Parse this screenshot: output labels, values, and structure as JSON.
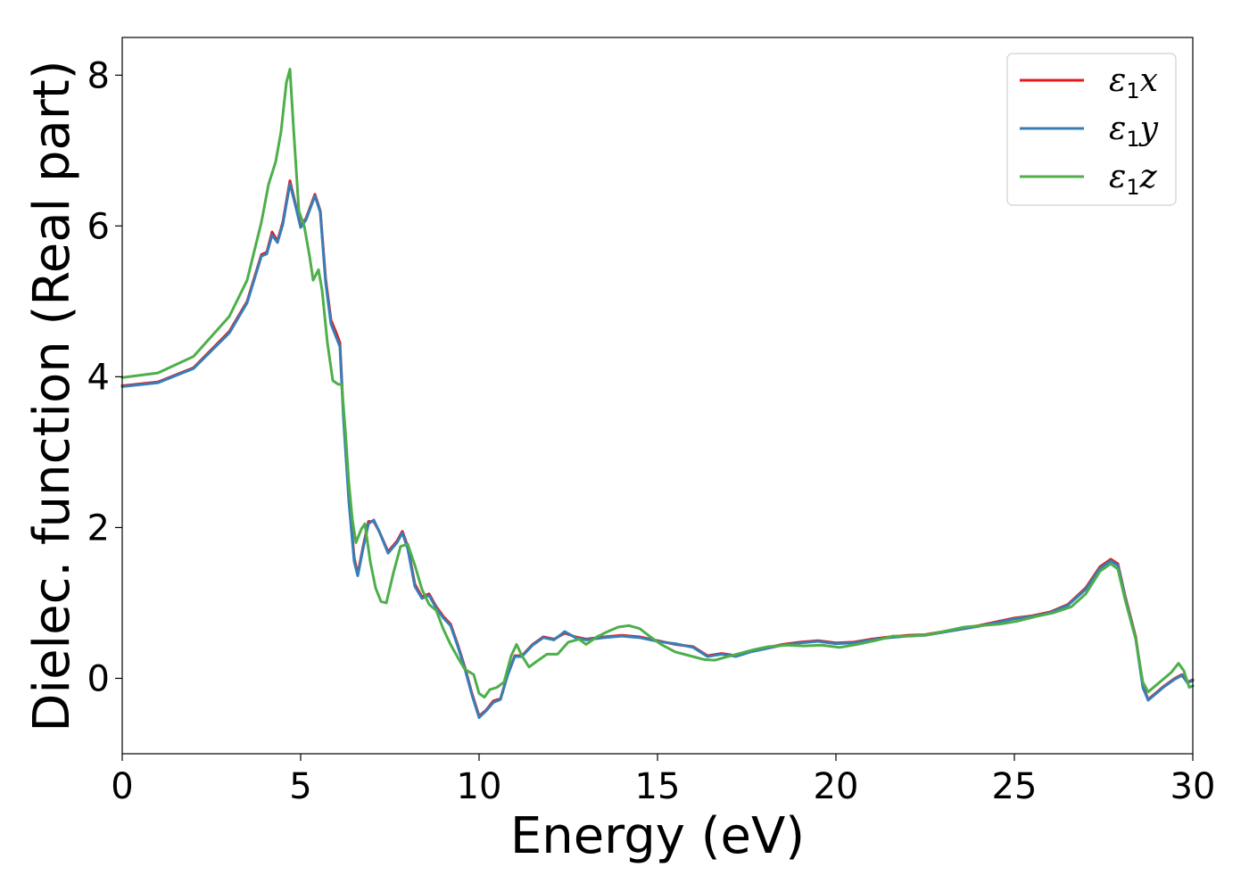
{
  "chart_data": {
    "type": "line",
    "xlabel": "Energy (eV)",
    "ylabel": "Dielec. function (Real part)",
    "xlim": [
      0,
      30
    ],
    "ylim": [
      -1,
      8.5
    ],
    "xticks": [
      0,
      5,
      10,
      15,
      20,
      25,
      30
    ],
    "yticks": [
      0,
      2,
      4,
      6,
      8
    ],
    "xtick_labels": [
      "0",
      "5",
      "10",
      "15",
      "20",
      "25",
      "30"
    ],
    "ytick_labels": [
      "0",
      "2",
      "4",
      "6",
      "8"
    ],
    "grid": false,
    "legend_position": "top-right",
    "series": [
      {
        "name": "ε1x",
        "legend": {
          "base": "ε",
          "sub": "1",
          "var": "x"
        },
        "color": "#e41a1c",
        "points": [
          [
            0,
            3.88
          ],
          [
            1,
            3.93
          ],
          [
            2,
            4.12
          ],
          [
            3,
            4.6
          ],
          [
            3.5,
            5.0
          ],
          [
            3.9,
            5.62
          ],
          [
            4.05,
            5.65
          ],
          [
            4.2,
            5.92
          ],
          [
            4.35,
            5.8
          ],
          [
            4.5,
            6.05
          ],
          [
            4.7,
            6.6
          ],
          [
            4.85,
            6.3
          ],
          [
            5.0,
            6.0
          ],
          [
            5.15,
            6.1
          ],
          [
            5.4,
            6.42
          ],
          [
            5.55,
            6.2
          ],
          [
            5.7,
            5.3
          ],
          [
            5.85,
            4.75
          ],
          [
            6.0,
            4.58
          ],
          [
            6.1,
            4.45
          ],
          [
            6.2,
            3.5
          ],
          [
            6.35,
            2.4
          ],
          [
            6.5,
            1.6
          ],
          [
            6.6,
            1.38
          ],
          [
            6.75,
            1.75
          ],
          [
            6.9,
            2.08
          ],
          [
            7.05,
            2.08
          ],
          [
            7.2,
            1.95
          ],
          [
            7.45,
            1.68
          ],
          [
            7.7,
            1.82
          ],
          [
            7.85,
            1.95
          ],
          [
            8.0,
            1.75
          ],
          [
            8.2,
            1.25
          ],
          [
            8.4,
            1.08
          ],
          [
            8.6,
            1.12
          ],
          [
            8.8,
            0.95
          ],
          [
            9.0,
            0.82
          ],
          [
            9.2,
            0.72
          ],
          [
            9.4,
            0.45
          ],
          [
            9.6,
            0.15
          ],
          [
            9.8,
            -0.2
          ],
          [
            10.0,
            -0.5
          ],
          [
            10.2,
            -0.42
          ],
          [
            10.4,
            -0.3
          ],
          [
            10.6,
            -0.27
          ],
          [
            10.8,
            0.05
          ],
          [
            11.0,
            0.3
          ],
          [
            11.2,
            0.3
          ],
          [
            11.5,
            0.45
          ],
          [
            11.8,
            0.55
          ],
          [
            12.1,
            0.52
          ],
          [
            12.4,
            0.6
          ],
          [
            12.7,
            0.55
          ],
          [
            13.0,
            0.52
          ],
          [
            13.5,
            0.55
          ],
          [
            14.0,
            0.57
          ],
          [
            14.5,
            0.55
          ],
          [
            15.0,
            0.5
          ],
          [
            15.5,
            0.45
          ],
          [
            16.0,
            0.42
          ],
          [
            16.4,
            0.3
          ],
          [
            16.8,
            0.33
          ],
          [
            17.2,
            0.3
          ],
          [
            17.6,
            0.36
          ],
          [
            18.0,
            0.4
          ],
          [
            18.5,
            0.45
          ],
          [
            19.0,
            0.48
          ],
          [
            19.5,
            0.5
          ],
          [
            20.0,
            0.47
          ],
          [
            20.5,
            0.48
          ],
          [
            21.0,
            0.52
          ],
          [
            21.5,
            0.55
          ],
          [
            22.0,
            0.57
          ],
          [
            22.5,
            0.58
          ],
          [
            23.0,
            0.62
          ],
          [
            23.5,
            0.66
          ],
          [
            24.0,
            0.7
          ],
          [
            24.5,
            0.75
          ],
          [
            25.0,
            0.8
          ],
          [
            25.5,
            0.83
          ],
          [
            26.0,
            0.88
          ],
          [
            26.5,
            0.98
          ],
          [
            27.0,
            1.2
          ],
          [
            27.4,
            1.48
          ],
          [
            27.7,
            1.58
          ],
          [
            27.9,
            1.52
          ],
          [
            28.1,
            1.1
          ],
          [
            28.4,
            0.55
          ],
          [
            28.6,
            -0.1
          ],
          [
            28.75,
            -0.28
          ],
          [
            28.95,
            -0.2
          ],
          [
            29.2,
            -0.1
          ],
          [
            29.5,
            0.0
          ],
          [
            29.7,
            0.05
          ],
          [
            29.85,
            -0.05
          ],
          [
            30.0,
            -0.02
          ]
        ]
      },
      {
        "name": "ε1y",
        "legend": {
          "base": "ε",
          "sub": "1",
          "var": "y"
        },
        "color": "#377eb8",
        "points": [
          [
            0,
            3.87
          ],
          [
            1,
            3.92
          ],
          [
            2,
            4.11
          ],
          [
            3,
            4.58
          ],
          [
            3.5,
            4.98
          ],
          [
            3.9,
            5.6
          ],
          [
            4.05,
            5.63
          ],
          [
            4.2,
            5.88
          ],
          [
            4.35,
            5.78
          ],
          [
            4.5,
            6.02
          ],
          [
            4.7,
            6.56
          ],
          [
            4.85,
            6.28
          ],
          [
            5.0,
            5.98
          ],
          [
            5.15,
            6.08
          ],
          [
            5.4,
            6.4
          ],
          [
            5.55,
            6.18
          ],
          [
            5.7,
            5.25
          ],
          [
            5.85,
            4.7
          ],
          [
            6.0,
            4.52
          ],
          [
            6.1,
            4.4
          ],
          [
            6.2,
            3.45
          ],
          [
            6.35,
            2.35
          ],
          [
            6.5,
            1.55
          ],
          [
            6.6,
            1.36
          ],
          [
            6.75,
            1.72
          ],
          [
            6.9,
            2.05
          ],
          [
            7.05,
            2.1
          ],
          [
            7.2,
            1.95
          ],
          [
            7.45,
            1.66
          ],
          [
            7.7,
            1.8
          ],
          [
            7.85,
            1.93
          ],
          [
            8.0,
            1.72
          ],
          [
            8.2,
            1.22
          ],
          [
            8.4,
            1.06
          ],
          [
            8.6,
            1.1
          ],
          [
            8.8,
            0.93
          ],
          [
            9.0,
            0.8
          ],
          [
            9.2,
            0.7
          ],
          [
            9.4,
            0.43
          ],
          [
            9.6,
            0.13
          ],
          [
            9.8,
            -0.22
          ],
          [
            10.0,
            -0.52
          ],
          [
            10.2,
            -0.43
          ],
          [
            10.4,
            -0.32
          ],
          [
            10.6,
            -0.28
          ],
          [
            10.8,
            0.04
          ],
          [
            11.0,
            0.29
          ],
          [
            11.2,
            0.29
          ],
          [
            11.5,
            0.44
          ],
          [
            11.8,
            0.54
          ],
          [
            12.1,
            0.51
          ],
          [
            12.4,
            0.62
          ],
          [
            12.7,
            0.54
          ],
          [
            13.0,
            0.51
          ],
          [
            13.5,
            0.54
          ],
          [
            14.0,
            0.56
          ],
          [
            14.5,
            0.54
          ],
          [
            15.0,
            0.49
          ],
          [
            15.5,
            0.46
          ],
          [
            16.0,
            0.41
          ],
          [
            16.4,
            0.29
          ],
          [
            16.8,
            0.32
          ],
          [
            17.2,
            0.29
          ],
          [
            17.6,
            0.35
          ],
          [
            18.0,
            0.39
          ],
          [
            18.5,
            0.44
          ],
          [
            19.0,
            0.47
          ],
          [
            19.5,
            0.49
          ],
          [
            20.0,
            0.46
          ],
          [
            20.5,
            0.47
          ],
          [
            21.0,
            0.51
          ],
          [
            21.5,
            0.54
          ],
          [
            22.0,
            0.56
          ],
          [
            22.5,
            0.57
          ],
          [
            23.0,
            0.61
          ],
          [
            23.5,
            0.65
          ],
          [
            24.0,
            0.69
          ],
          [
            24.5,
            0.74
          ],
          [
            25.0,
            0.79
          ],
          [
            25.5,
            0.82
          ],
          [
            26.0,
            0.87
          ],
          [
            26.5,
            0.97
          ],
          [
            27.0,
            1.18
          ],
          [
            27.4,
            1.46
          ],
          [
            27.7,
            1.56
          ],
          [
            27.9,
            1.5
          ],
          [
            28.1,
            1.08
          ],
          [
            28.4,
            0.53
          ],
          [
            28.6,
            -0.12
          ],
          [
            28.75,
            -0.29
          ],
          [
            28.95,
            -0.21
          ],
          [
            29.2,
            -0.11
          ],
          [
            29.5,
            -0.01
          ],
          [
            29.7,
            0.04
          ],
          [
            29.85,
            -0.06
          ],
          [
            30.0,
            -0.03
          ]
        ]
      },
      {
        "name": "ε1z",
        "legend": {
          "base": "ε",
          "sub": "1",
          "var": "z"
        },
        "color": "#4daf4a",
        "points": [
          [
            0,
            3.99
          ],
          [
            1,
            4.05
          ],
          [
            2,
            4.27
          ],
          [
            3,
            4.8
          ],
          [
            3.5,
            5.28
          ],
          [
            3.9,
            6.05
          ],
          [
            4.1,
            6.55
          ],
          [
            4.3,
            6.85
          ],
          [
            4.45,
            7.25
          ],
          [
            4.6,
            7.9
          ],
          [
            4.7,
            8.08
          ],
          [
            4.8,
            7.3
          ],
          [
            4.95,
            6.2
          ],
          [
            5.1,
            6.0
          ],
          [
            5.25,
            5.6
          ],
          [
            5.35,
            5.28
          ],
          [
            5.5,
            5.42
          ],
          [
            5.6,
            5.15
          ],
          [
            5.75,
            4.45
          ],
          [
            5.9,
            3.95
          ],
          [
            6.05,
            3.9
          ],
          [
            6.15,
            3.9
          ],
          [
            6.25,
            3.3
          ],
          [
            6.35,
            2.6
          ],
          [
            6.45,
            2.1
          ],
          [
            6.55,
            1.8
          ],
          [
            6.7,
            1.98
          ],
          [
            6.8,
            2.05
          ],
          [
            6.95,
            1.55
          ],
          [
            7.1,
            1.2
          ],
          [
            7.25,
            1.02
          ],
          [
            7.4,
            1.0
          ],
          [
            7.6,
            1.4
          ],
          [
            7.8,
            1.75
          ],
          [
            8.0,
            1.78
          ],
          [
            8.2,
            1.5
          ],
          [
            8.4,
            1.18
          ],
          [
            8.6,
            0.98
          ],
          [
            8.8,
            0.9
          ],
          [
            9.0,
            0.65
          ],
          [
            9.2,
            0.45
          ],
          [
            9.4,
            0.28
          ],
          [
            9.6,
            0.12
          ],
          [
            9.85,
            0.05
          ],
          [
            10.0,
            -0.2
          ],
          [
            10.15,
            -0.25
          ],
          [
            10.3,
            -0.15
          ],
          [
            10.5,
            -0.12
          ],
          [
            10.7,
            -0.05
          ],
          [
            10.9,
            0.3
          ],
          [
            11.05,
            0.45
          ],
          [
            11.2,
            0.3
          ],
          [
            11.4,
            0.15
          ],
          [
            11.6,
            0.22
          ],
          [
            11.9,
            0.32
          ],
          [
            12.2,
            0.32
          ],
          [
            12.5,
            0.48
          ],
          [
            12.8,
            0.52
          ],
          [
            13.0,
            0.45
          ],
          [
            13.3,
            0.55
          ],
          [
            13.6,
            0.62
          ],
          [
            13.9,
            0.68
          ],
          [
            14.2,
            0.7
          ],
          [
            14.5,
            0.66
          ],
          [
            14.8,
            0.55
          ],
          [
            15.1,
            0.45
          ],
          [
            15.5,
            0.35
          ],
          [
            15.9,
            0.3
          ],
          [
            16.3,
            0.25
          ],
          [
            16.6,
            0.24
          ],
          [
            16.9,
            0.28
          ],
          [
            17.3,
            0.33
          ],
          [
            17.7,
            0.38
          ],
          [
            18.1,
            0.42
          ],
          [
            18.6,
            0.44
          ],
          [
            19.1,
            0.43
          ],
          [
            19.6,
            0.44
          ],
          [
            20.1,
            0.41
          ],
          [
            20.6,
            0.45
          ],
          [
            21.1,
            0.5
          ],
          [
            21.6,
            0.56
          ],
          [
            22.1,
            0.56
          ],
          [
            22.6,
            0.58
          ],
          [
            23.1,
            0.63
          ],
          [
            23.6,
            0.68
          ],
          [
            24.1,
            0.7
          ],
          [
            24.6,
            0.72
          ],
          [
            25.1,
            0.76
          ],
          [
            25.6,
            0.82
          ],
          [
            26.1,
            0.87
          ],
          [
            26.6,
            0.95
          ],
          [
            27.0,
            1.12
          ],
          [
            27.4,
            1.42
          ],
          [
            27.7,
            1.52
          ],
          [
            27.9,
            1.45
          ],
          [
            28.1,
            1.05
          ],
          [
            28.4,
            0.52
          ],
          [
            28.6,
            -0.05
          ],
          [
            28.75,
            -0.18
          ],
          [
            28.95,
            -0.1
          ],
          [
            29.2,
            0.0
          ],
          [
            29.4,
            0.08
          ],
          [
            29.6,
            0.2
          ],
          [
            29.75,
            0.1
          ],
          [
            29.9,
            -0.12
          ],
          [
            30.0,
            -0.1
          ]
        ]
      }
    ]
  }
}
